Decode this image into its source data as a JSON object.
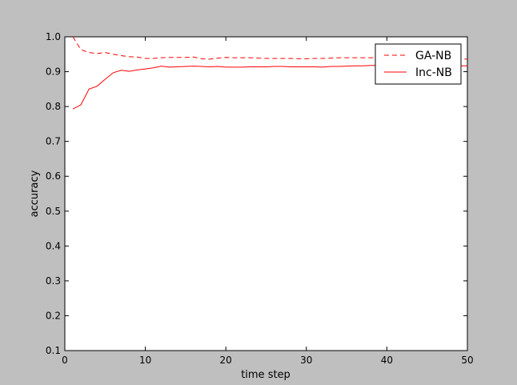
{
  "chart_data": {
    "type": "line",
    "title": "",
    "xlabel": "time step",
    "ylabel": "accuracy",
    "xlim": [
      0,
      50
    ],
    "ylim": [
      0.1,
      1.0
    ],
    "xticks": [
      "0",
      "10",
      "20",
      "30",
      "40",
      "50"
    ],
    "yticks": [
      "0.1",
      "0.2",
      "0.3",
      "0.4",
      "0.5",
      "0.6",
      "0.7",
      "0.8",
      "0.9",
      "1.0"
    ],
    "grid": false,
    "legend_position": "top-right",
    "series": [
      {
        "name": "GA-NB",
        "style": "dashed",
        "color": "#ff0000",
        "x": [
          1,
          2,
          3,
          4,
          5,
          6,
          7,
          8,
          9,
          10,
          11,
          12,
          13,
          14,
          15,
          16,
          17,
          18,
          19,
          20,
          21,
          22,
          23,
          24,
          25,
          26,
          27,
          28,
          29,
          30,
          31,
          32,
          33,
          34,
          35,
          36,
          37,
          38,
          39,
          40,
          41,
          42,
          43,
          44,
          45,
          46,
          47,
          48,
          49,
          50
        ],
        "values": [
          1.0,
          0.963,
          0.955,
          0.952,
          0.955,
          0.95,
          0.946,
          0.943,
          0.942,
          0.938,
          0.938,
          0.94,
          0.941,
          0.941,
          0.941,
          0.942,
          0.937,
          0.936,
          0.939,
          0.941,
          0.94,
          0.94,
          0.94,
          0.939,
          0.938,
          0.938,
          0.938,
          0.938,
          0.937,
          0.937,
          0.938,
          0.938,
          0.939,
          0.94,
          0.94,
          0.94,
          0.94,
          0.94,
          0.94,
          0.94,
          0.94,
          0.939,
          0.939,
          0.938,
          0.938,
          0.937,
          0.937,
          0.937,
          0.936,
          0.936
        ]
      },
      {
        "name": "Inc-NB",
        "style": "solid",
        "color": "#ff0000",
        "x": [
          1,
          2,
          3,
          4,
          5,
          6,
          7,
          8,
          9,
          10,
          11,
          12,
          13,
          14,
          15,
          16,
          17,
          18,
          19,
          20,
          21,
          22,
          23,
          24,
          25,
          26,
          27,
          28,
          29,
          30,
          31,
          32,
          33,
          34,
          35,
          36,
          37,
          38,
          39,
          40,
          41,
          42,
          43,
          44,
          45,
          46,
          47,
          48,
          49,
          50
        ],
        "values": [
          0.793,
          0.805,
          0.85,
          0.858,
          0.878,
          0.897,
          0.904,
          0.901,
          0.905,
          0.908,
          0.911,
          0.916,
          0.913,
          0.914,
          0.915,
          0.916,
          0.915,
          0.914,
          0.915,
          0.913,
          0.913,
          0.913,
          0.914,
          0.914,
          0.914,
          0.915,
          0.915,
          0.914,
          0.914,
          0.914,
          0.914,
          0.913,
          0.915,
          0.915,
          0.916,
          0.917,
          0.917,
          0.918,
          0.918,
          0.918,
          0.918,
          0.918,
          0.918,
          0.918,
          0.918,
          0.918,
          0.918,
          0.918,
          0.917,
          0.917
        ]
      }
    ]
  }
}
